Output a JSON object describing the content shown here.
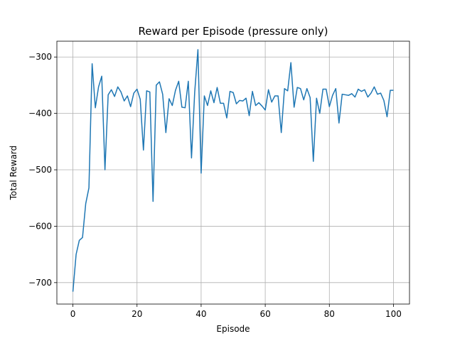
{
  "chart_data": {
    "type": "line",
    "title": "Reward per Episode (pressure only)",
    "xlabel": "Episode",
    "ylabel": "Total Reward",
    "xlim": [
      -5,
      105
    ],
    "ylim": [
      -738,
      -272
    ],
    "xticks": [
      0,
      20,
      40,
      60,
      80,
      100
    ],
    "yticks": [
      -700,
      -600,
      -500,
      -400,
      -300
    ],
    "grid": true,
    "series": [
      {
        "color": "#1f77b4",
        "x": [
          0,
          1,
          2,
          3,
          4,
          5,
          6,
          7,
          8,
          9,
          10,
          11,
          12,
          13,
          14,
          15,
          16,
          17,
          18,
          19,
          20,
          21,
          22,
          23,
          24,
          25,
          26,
          27,
          28,
          29,
          30,
          31,
          32,
          33,
          34,
          35,
          36,
          37,
          38,
          39,
          40,
          41,
          42,
          43,
          44,
          45,
          46,
          47,
          48,
          49,
          50,
          51,
          52,
          53,
          54,
          55,
          56,
          57,
          58,
          59,
          60,
          61,
          62,
          63,
          64,
          65,
          66,
          67,
          68,
          69,
          70,
          71,
          72,
          73,
          74,
          75,
          76,
          77,
          78,
          79,
          80,
          81,
          82,
          83,
          84,
          85,
          86,
          87,
          88,
          89,
          90,
          91,
          92,
          93,
          94,
          95,
          96,
          97,
          98,
          99,
          100
        ],
        "y": [
          -716,
          -650,
          -625,
          -620,
          -560,
          -532,
          -312,
          -390,
          -353,
          -334,
          -500,
          -367,
          -358,
          -370,
          -353,
          -362,
          -378,
          -369,
          -388,
          -364,
          -357,
          -375,
          -465,
          -360,
          -362,
          -556,
          -350,
          -344,
          -366,
          -434,
          -374,
          -386,
          -359,
          -343,
          -389,
          -390,
          -343,
          -479,
          -362,
          -287,
          -506,
          -369,
          -386,
          -360,
          -381,
          -354,
          -382,
          -382,
          -408,
          -361,
          -363,
          -383,
          -377,
          -378,
          -373,
          -404,
          -361,
          -386,
          -381,
          -387,
          -394,
          -358,
          -380,
          -369,
          -369,
          -434,
          -356,
          -360,
          -310,
          -389,
          -354,
          -356,
          -376,
          -356,
          -372,
          -485,
          -373,
          -400,
          -357,
          -357,
          -388,
          -368,
          -356,
          -417,
          -366,
          -367,
          -368,
          -365,
          -371,
          -357,
          -361,
          -358,
          -371,
          -364,
          -353,
          -366,
          -364,
          -377,
          -406,
          -359,
          -359
        ]
      }
    ]
  }
}
